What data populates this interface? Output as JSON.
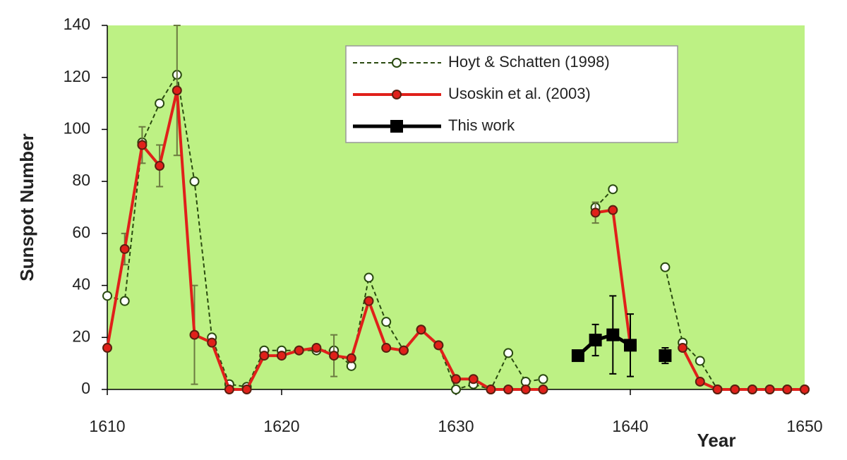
{
  "chart_data": {
    "type": "line",
    "xlabel": "Year",
    "ylabel": "Sunspot Number",
    "x": [
      1610,
      1611,
      1612,
      1613,
      1614,
      1615,
      1616,
      1617,
      1618,
      1619,
      1620,
      1621,
      1622,
      1623,
      1624,
      1625,
      1626,
      1627,
      1628,
      1629,
      1630,
      1631,
      1632,
      1633,
      1634,
      1635,
      1636,
      1637,
      1638,
      1639,
      1640,
      1641,
      1642,
      1643,
      1644,
      1645,
      1646,
      1647,
      1648,
      1649,
      1650
    ],
    "series": [
      {
        "name": "Hoyt & Schatten (1998)",
        "color": "#2a4a10",
        "line_style": "dashed",
        "marker": "open-circle",
        "values": [
          36,
          34,
          95,
          110,
          121,
          80,
          20,
          2,
          1,
          15,
          15,
          15,
          15,
          15,
          9,
          43,
          26,
          15,
          23,
          17,
          0,
          2,
          0,
          14,
          3,
          4,
          null,
          null,
          70,
          77,
          null,
          null,
          47,
          18,
          11,
          0,
          0,
          0,
          0,
          0,
          0
        ]
      },
      {
        "name": "Usoskin et al. (2003)",
        "color": "#e0201a",
        "line_style": "solid",
        "marker": "circle",
        "error_color": "#6b7a40",
        "values": [
          16,
          54,
          94,
          86,
          115,
          21,
          18,
          0,
          0,
          13,
          13,
          15,
          16,
          13,
          12,
          34,
          16,
          15,
          23,
          17,
          4,
          4,
          0,
          0,
          0,
          0,
          null,
          null,
          68,
          69,
          17,
          null,
          null,
          16,
          3,
          0,
          0,
          0,
          0,
          0,
          0
        ],
        "errors": [
          null,
          6,
          7,
          8,
          25,
          19,
          null,
          null,
          null,
          null,
          null,
          null,
          null,
          8,
          null,
          null,
          null,
          null,
          null,
          null,
          null,
          null,
          null,
          null,
          null,
          null,
          null,
          null,
          4,
          null,
          null,
          null,
          null,
          null,
          null,
          null,
          null,
          null,
          null,
          null,
          null
        ]
      },
      {
        "name": "This work",
        "color": "#000000",
        "line_style": "solid",
        "marker": "square",
        "error_color": "#000000",
        "values": [
          null,
          null,
          null,
          null,
          null,
          null,
          null,
          null,
          null,
          null,
          null,
          null,
          null,
          null,
          null,
          null,
          null,
          null,
          null,
          null,
          null,
          null,
          null,
          null,
          null,
          null,
          null,
          13,
          19,
          21,
          17,
          null,
          13,
          null,
          null,
          null,
          null,
          null,
          null,
          null,
          null
        ],
        "errors": [
          null,
          null,
          null,
          null,
          null,
          null,
          null,
          null,
          null,
          null,
          null,
          null,
          null,
          null,
          null,
          null,
          null,
          null,
          null,
          null,
          null,
          null,
          null,
          null,
          null,
          null,
          null,
          2,
          6,
          15,
          12,
          null,
          3,
          null,
          null,
          null,
          null,
          null,
          null,
          null,
          null
        ]
      }
    ],
    "xlim": [
      1610,
      1650
    ],
    "xticks": [
      1610,
      1620,
      1630,
      1640,
      1650
    ],
    "ylim": [
      0,
      140
    ],
    "yticks": [
      0,
      20,
      40,
      60,
      80,
      100,
      120,
      140
    ],
    "background": "#bdf184",
    "legend": "upper-right"
  }
}
